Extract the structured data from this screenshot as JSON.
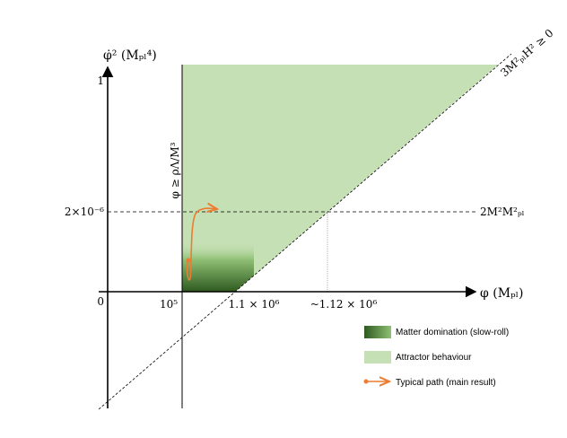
{
  "axes": {
    "y_label": "φ̇² (Mₚₗ⁴)",
    "x_label": "φ (Mₚₗ)",
    "y_ticks": [
      "1",
      "2×10⁻⁶",
      "0"
    ],
    "x_ticks": [
      "10⁵",
      "1.1 × 10⁶",
      "~1.12 × 10⁶"
    ]
  },
  "annotations": {
    "vertical_bound": "φ ≥ ρΛ/M³",
    "diagonal_bound": "3M²ₚₗH² ≥ 0",
    "horizontal_level": "2M²M²ₚₗ"
  },
  "legend": [
    "Matter domination (slow-roll)",
    "Attractor behaviour",
    "Typical path (main result)"
  ]
}
